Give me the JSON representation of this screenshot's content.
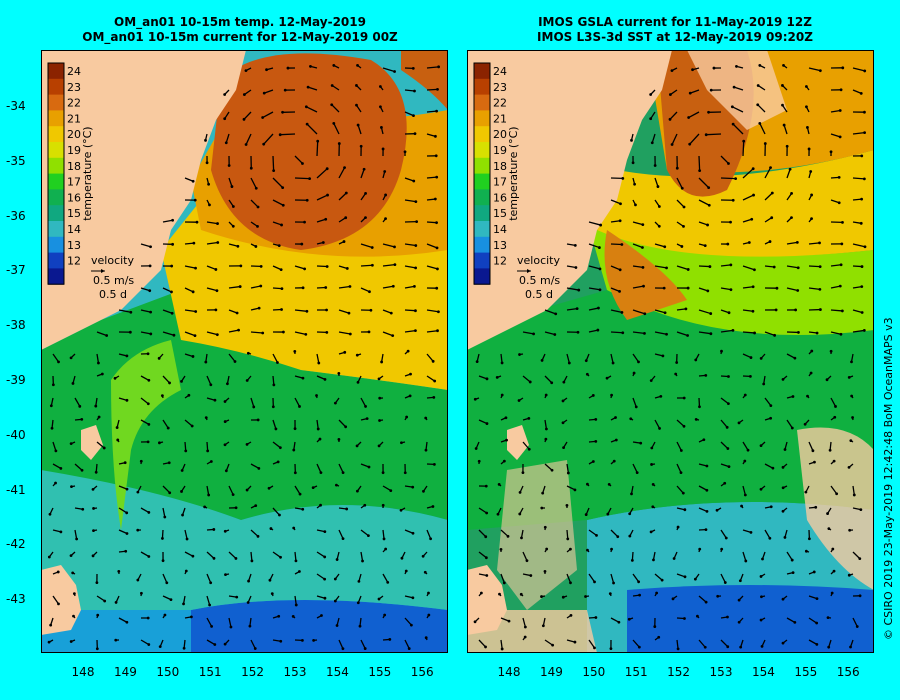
{
  "panel1": {
    "title_line1": "OM_an01 10-15m temp. 12-May-2019",
    "title_line2": "OM_an01 10-15m current for 12-May-2019 00Z"
  },
  "panel2": {
    "title_line1": "IMOS GSLA current for 11-May-2019 12Z",
    "title_line2": "IMOS L3S-3d SST at 12-May-2019 09:20Z"
  },
  "lat_ticks": [
    "-34",
    "-35",
    "-36",
    "-37",
    "-38",
    "-39",
    "-40",
    "-41",
    "-42",
    "-43"
  ],
  "lon_ticks": [
    "148",
    "149",
    "150",
    "151",
    "152",
    "153",
    "154",
    "155",
    "156"
  ],
  "colorbar": {
    "ticks": [
      "24",
      "23",
      "22",
      "21",
      "20",
      "19",
      "18",
      "17",
      "16",
      "15",
      "14",
      "13",
      "12"
    ],
    "label": "temperature (°C)",
    "colors": [
      "#8b2300",
      "#b84000",
      "#d86a10",
      "#e8a000",
      "#f0c800",
      "#d8e000",
      "#90e000",
      "#20d020",
      "#10b050",
      "#10a880",
      "#30b8c0",
      "#1890e0",
      "#1040c0",
      "#0a1890"
    ]
  },
  "velocity_legend": {
    "title": "velocity",
    "scale": "0.5 m/s",
    "duration": "0.5 d"
  },
  "colors": {
    "background": "#00ffff",
    "land": "#f8caa0",
    "missing": "#f8caa0"
  },
  "credit": "© CSIRO 2019   23-May-2019 12:42:48 BoM OceanMAPS v3"
}
